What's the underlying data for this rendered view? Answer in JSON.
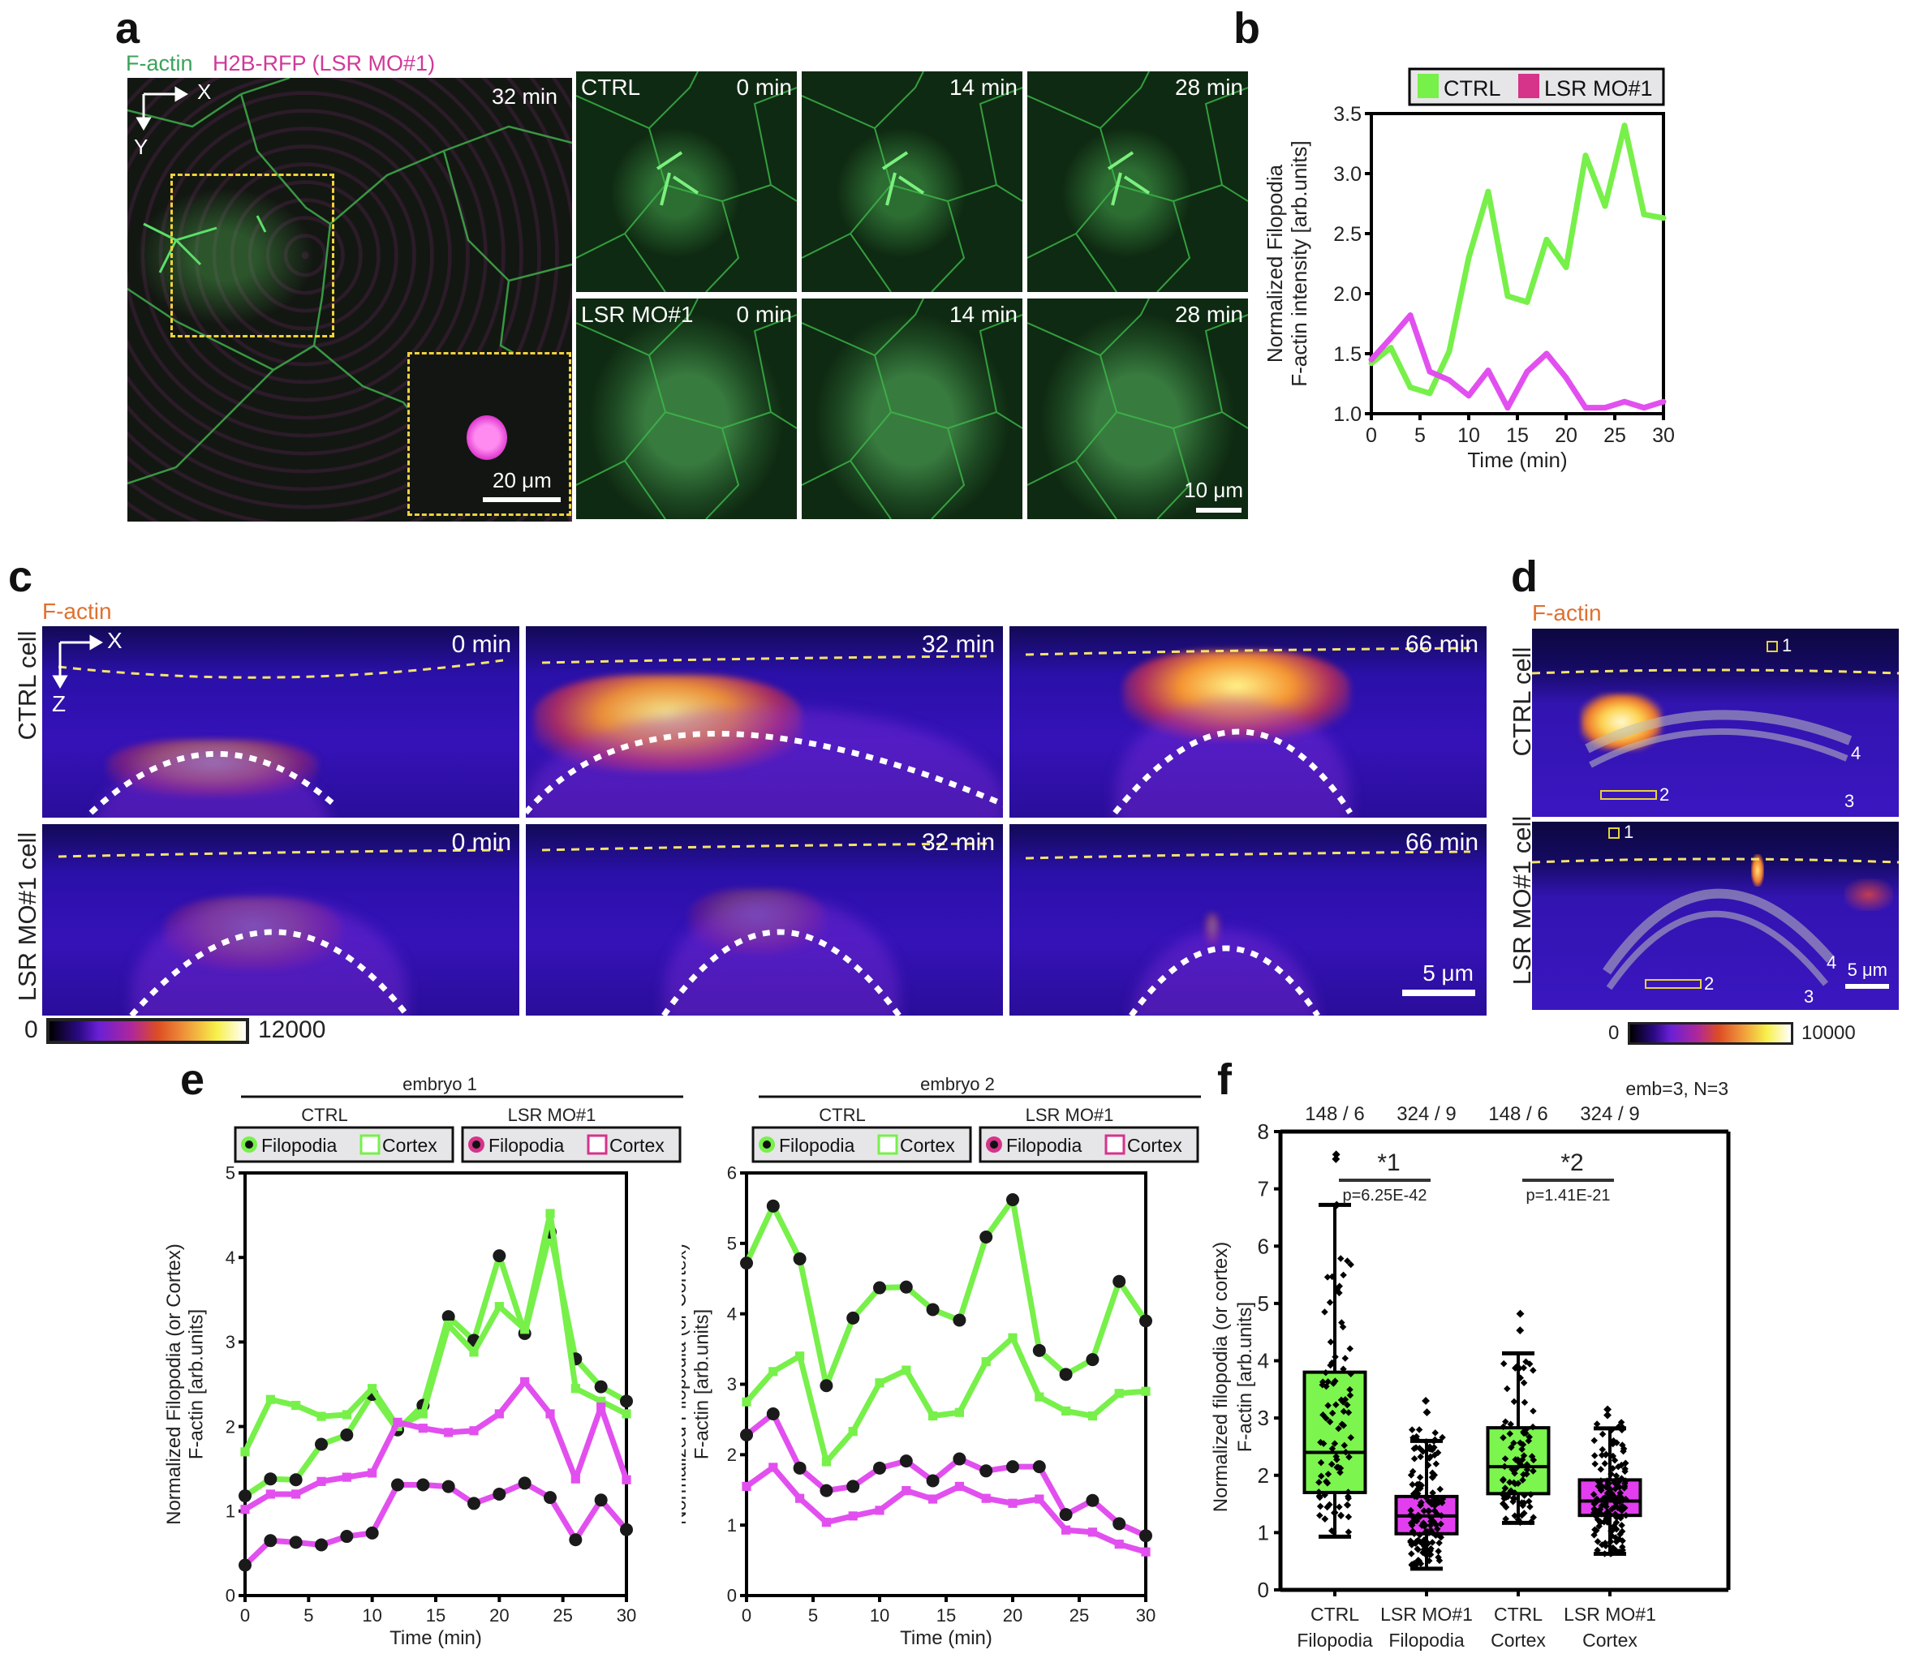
{
  "panels": {
    "a": {
      "letter": "a",
      "channel_green": "F-actin",
      "channel_magenta": "H2B-RFP (LSR MO#1)",
      "overview_time": "32 min",
      "axis_x": "X",
      "axis_y": "Y",
      "inset_scale": "20 μm",
      "grid_scale": "10 μm",
      "rows": [
        {
          "label": "CTRL",
          "times": [
            "0 min",
            "14 min",
            "28 min"
          ]
        },
        {
          "label": "LSR MO#1",
          "times": [
            "0 min",
            "14 min",
            "28 min"
          ]
        }
      ]
    },
    "c": {
      "letter": "c",
      "channel": "F-actin",
      "axis_x": "X",
      "axis_z": "Z",
      "rows": [
        {
          "label": "CTRL cell",
          "times": [
            "0 min",
            "32 min",
            "66 min"
          ]
        },
        {
          "label": "LSR MO#1 cell",
          "times": [
            "0 min",
            "32 min",
            "66 min"
          ]
        }
      ],
      "scale": "5 μm",
      "colorbar_min": "0",
      "colorbar_max": "12000"
    },
    "d": {
      "letter": "d",
      "channel": "F-actin",
      "rows": [
        {
          "label": "CTRL cell",
          "regions": [
            "1",
            "2",
            "3",
            "4"
          ]
        },
        {
          "label": "LSR MO#1 cell",
          "regions": [
            "1",
            "2",
            "3",
            "4"
          ]
        }
      ],
      "scale": "5 μm",
      "colorbar_min": "0",
      "colorbar_max": "10000"
    },
    "e": {
      "letter": "e"
    },
    "f": {
      "letter": "f"
    }
  },
  "colors": {
    "ctrl": "#77f04a",
    "lsr": "#e24fef",
    "lsr_legend": "#d6338a",
    "ctrl_box": "#7cf54f",
    "lsr_box": "#e23ef0"
  },
  "chart_data": [
    {
      "id": "b",
      "type": "line",
      "title": "",
      "xlabel": "Time (min)",
      "ylabel": "Normalized Filopodia F-actin intensity [arb.units]",
      "ylabel_lines": [
        "Normalized Filopodia",
        "F-actin intensity [arb.units]"
      ],
      "xlim": [
        0,
        30
      ],
      "ylim": [
        1.0,
        3.5
      ],
      "xticks": [
        "0",
        "5",
        "10",
        "15",
        "20",
        "25",
        "30"
      ],
      "yticks": [
        "1.0",
        "1.5",
        "2.0",
        "2.5",
        "3.0",
        "3.5"
      ],
      "legend": {
        "position": "top",
        "entries": [
          "CTRL",
          "LSR MO#1"
        ]
      },
      "x": [
        0,
        2,
        4,
        6,
        8,
        10,
        12,
        14,
        16,
        18,
        20,
        22,
        24,
        26,
        28,
        30
      ],
      "series": [
        {
          "name": "CTRL",
          "values": [
            1.42,
            1.55,
            1.22,
            1.17,
            1.52,
            2.3,
            2.85,
            1.98,
            1.93,
            2.45,
            2.22,
            3.15,
            2.73,
            3.4,
            2.66,
            2.63
          ]
        },
        {
          "name": "LSR MO#1",
          "values": [
            1.45,
            1.63,
            1.82,
            1.35,
            1.28,
            1.15,
            1.36,
            1.05,
            1.35,
            1.5,
            1.3,
            1.05,
            1.05,
            1.1,
            1.05,
            1.1
          ]
        }
      ]
    },
    {
      "id": "e1",
      "type": "line",
      "group_title": "embryo 1",
      "xlabel": "Time (min)",
      "ylabel": "Normalized Filopodia (or Cortex) F-actin [arb.units]",
      "ylabel_lines": [
        "Normalized Filopodia (or Cortex)",
        "F-actin [arb.units]"
      ],
      "xlim": [
        0,
        30
      ],
      "ylim": [
        0,
        5
      ],
      "xticks": [
        "0",
        "5",
        "10",
        "15",
        "20",
        "25",
        "30"
      ],
      "yticks": [
        "0",
        "1",
        "2",
        "3",
        "4",
        "5"
      ],
      "legend_groups": [
        {
          "title": "CTRL",
          "entries": [
            "Filopodia",
            "Cortex"
          ]
        },
        {
          "title": "LSR MO#1",
          "entries": [
            "Filopodia",
            "Cortex"
          ]
        }
      ],
      "x": [
        0,
        2,
        4,
        6,
        8,
        10,
        12,
        14,
        16,
        18,
        20,
        22,
        24,
        26,
        28,
        30
      ],
      "series": [
        {
          "name": "CTRL Filopodia",
          "group": "ctrl",
          "marker": "circle",
          "values": [
            1.18,
            1.38,
            1.37,
            1.79,
            1.9,
            2.38,
            1.96,
            2.25,
            3.3,
            3.02,
            4.02,
            3.1,
            4.3,
            2.8,
            2.47,
            2.3
          ]
        },
        {
          "name": "CTRL Cortex",
          "group": "ctrl",
          "marker": "square",
          "values": [
            1.7,
            2.32,
            2.25,
            2.12,
            2.14,
            2.45,
            2.0,
            2.15,
            3.2,
            2.88,
            3.42,
            3.15,
            4.52,
            2.45,
            2.3,
            2.15
          ]
        },
        {
          "name": "LSR MO#1 Filopodia",
          "group": "lsr",
          "marker": "circle",
          "values": [
            0.36,
            0.65,
            0.63,
            0.6,
            0.7,
            0.74,
            1.31,
            1.31,
            1.29,
            1.09,
            1.2,
            1.33,
            1.16,
            0.66,
            1.13,
            0.78
          ]
        },
        {
          "name": "LSR MO#1 Cortex",
          "group": "lsr",
          "marker": "square",
          "values": [
            1.02,
            1.2,
            1.2,
            1.35,
            1.4,
            1.45,
            2.05,
            1.98,
            1.93,
            1.95,
            2.15,
            2.53,
            2.15,
            1.38,
            2.23,
            1.37
          ]
        }
      ]
    },
    {
      "id": "e2",
      "type": "line",
      "group_title": "embryo 2",
      "xlabel": "Time (min)",
      "ylabel": "Normalized Filopodia (or Cortex) F-actin [arb.units]",
      "ylabel_lines": [
        "Normalized Filopodia (or Cortex)",
        "F-actin [arb.units]"
      ],
      "xlim": [
        0,
        30
      ],
      "ylim": [
        0,
        6
      ],
      "xticks": [
        "0",
        "5",
        "10",
        "15",
        "20",
        "25",
        "30"
      ],
      "yticks": [
        "0",
        "1",
        "2",
        "3",
        "4",
        "5",
        "6"
      ],
      "legend_groups": [
        {
          "title": "CTRL",
          "entries": [
            "Filopodia",
            "Cortex"
          ]
        },
        {
          "title": "LSR MO#1",
          "entries": [
            "Filopodia",
            "Cortex"
          ]
        }
      ],
      "x": [
        0,
        2,
        4,
        6,
        8,
        10,
        12,
        14,
        16,
        18,
        20,
        22,
        24,
        26,
        28,
        30
      ],
      "series": [
        {
          "name": "CTRL Filopodia",
          "group": "ctrl",
          "marker": "circle",
          "values": [
            4.72,
            5.53,
            4.78,
            2.98,
            3.94,
            4.37,
            4.38,
            4.06,
            3.91,
            5.09,
            5.62,
            3.48,
            3.14,
            3.35,
            4.46,
            3.9
          ]
        },
        {
          "name": "CTRL Cortex",
          "group": "ctrl",
          "marker": "square",
          "values": [
            2.75,
            3.18,
            3.4,
            1.9,
            2.33,
            3.02,
            3.2,
            2.55,
            2.6,
            3.32,
            3.66,
            2.82,
            2.62,
            2.55,
            2.87,
            2.9
          ]
        },
        {
          "name": "LSR MO#1 Filopodia",
          "group": "lsr",
          "marker": "circle",
          "values": [
            2.28,
            2.58,
            1.81,
            1.49,
            1.55,
            1.81,
            1.91,
            1.63,
            1.94,
            1.77,
            1.83,
            1.83,
            1.15,
            1.35,
            1.02,
            0.85
          ]
        },
        {
          "name": "LSR MO#1 Cortex",
          "group": "lsr",
          "marker": "square",
          "values": [
            1.55,
            1.82,
            1.38,
            1.04,
            1.13,
            1.21,
            1.49,
            1.37,
            1.55,
            1.38,
            1.31,
            1.37,
            0.93,
            0.9,
            0.73,
            0.62
          ]
        }
      ]
    },
    {
      "id": "f",
      "type": "box",
      "annotation": "emb=3, N=3",
      "ylabel": "Normalized filopodia (or cortex) F-actin [arb.units]",
      "ylabel_lines": [
        "Normalized filopodia (or cortex)",
        "F-actin  [arb.units]"
      ],
      "ylim": [
        0,
        8
      ],
      "yticks": [
        "0",
        "1",
        "2",
        "3",
        "4",
        "5",
        "6",
        "7",
        "8"
      ],
      "categories": [
        {
          "line1": "CTRL",
          "line2": "Filopodia",
          "n_label": "148 / 6",
          "group": "ctrl",
          "min": 0.93,
          "q1": 1.7,
          "median": 2.4,
          "q3": 3.8,
          "max": 6.72,
          "outliers": [
            7.6,
            7.52,
            6.72
          ],
          "spread": [
            0.9,
            5.98
          ]
        },
        {
          "line1": "LSR MO#1",
          "line2": "Filopodia",
          "n_label": "324 / 9",
          "group": "lsr",
          "min": 0.37,
          "q1": 0.98,
          "median": 1.29,
          "q3": 1.63,
          "max": 2.6,
          "outliers": [
            3.3,
            3.1
          ],
          "spread": [
            0.37,
            2.85
          ]
        },
        {
          "line1": "CTRL",
          "line2": "Cortex",
          "n_label": "148 / 6",
          "group": "ctrl",
          "min": 1.17,
          "q1": 1.68,
          "median": 2.15,
          "q3": 2.83,
          "max": 4.13,
          "outliers": [
            4.82,
            4.53
          ],
          "spread": [
            1.17,
            4.05
          ]
        },
        {
          "line1": "LSR MO#1",
          "line2": "Cortex",
          "n_label": "324 / 9",
          "group": "lsr",
          "min": 0.63,
          "q1": 1.3,
          "median": 1.55,
          "q3": 1.92,
          "max": 2.82,
          "outliers": [
            3.15,
            3.05
          ],
          "spread": [
            0.63,
            2.95
          ]
        }
      ],
      "comparisons": [
        {
          "label": "*1",
          "p": "p=6.25E-42",
          "between": [
            0,
            1
          ]
        },
        {
          "label": "*2",
          "p": "p=1.41E-21",
          "between": [
            2,
            3
          ]
        }
      ]
    }
  ]
}
